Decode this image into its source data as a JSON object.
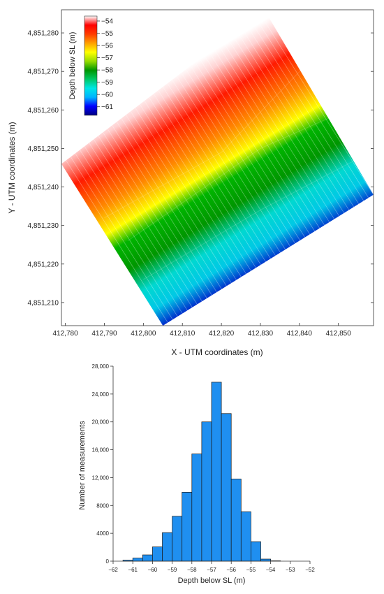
{
  "chart_data": [
    {
      "type": "scatter",
      "xlabel": "X - UTM coordinates (m)",
      "ylabel": "Y - UTM coordinates (m)",
      "x_ticks": [
        "412,780",
        "412,790",
        "412,800",
        "412,810",
        "412,820",
        "412,830",
        "412,840",
        "412,850"
      ],
      "y_ticks": [
        "4,851,210",
        "4,851,220",
        "4,851,230",
        "4,851,240",
        "4,851,250",
        "4,851,260",
        "4,851,270",
        "4,851,280"
      ],
      "x_tick_values": [
        412780,
        412790,
        412800,
        412810,
        412820,
        412830,
        412840,
        412850
      ],
      "y_tick_values": [
        4851210,
        4851220,
        4851230,
        4851240,
        4851250,
        4851260,
        4851270,
        4851280
      ],
      "xlim": [
        412779,
        412859
      ],
      "ylim": [
        4851204,
        4851286
      ],
      "survey_area_corners": [
        [
          412779,
          4851246
        ],
        [
          412831,
          4851286
        ],
        [
          412859,
          4851238
        ],
        [
          412805,
          4851204
        ]
      ],
      "colorbar": {
        "label": "Depth below SL (m)",
        "tick_labels": [
          "−54",
          "−55",
          "−56",
          "−57",
          "−58",
          "−59",
          "−60",
          "−61"
        ],
        "tick_values": [
          -54,
          -55,
          -56,
          -57,
          -58,
          -59,
          -60,
          -61
        ],
        "range": [
          -61.7,
          -53.6
        ],
        "colors": [
          "#000080",
          "#0000ff",
          "#00b4ff",
          "#00e6e6",
          "#00c864",
          "#009600",
          "#96dc00",
          "#ffff00",
          "#ffa000",
          "#ff3c00",
          "#ff0000",
          "#ffffff"
        ],
        "placement": "top-left"
      },
      "depth_contours": [
        {
          "depth": -54,
          "line": [
            [
              412779,
              4851264
            ],
            [
              412831,
              4851304
            ]
          ]
        },
        {
          "depth": -56,
          "line": [
            [
              412779,
              4851251
            ],
            [
              412830,
              4851284
            ]
          ]
        },
        {
          "depth": -57,
          "line": [
            [
              412790,
              4851232
            ],
            [
              412820,
              4851249
            ],
            [
              412842,
              4851272
            ]
          ]
        },
        {
          "depth": -58,
          "line": [
            [
              412796,
              4851226
            ],
            [
              412830,
              4851250
            ],
            [
              412850,
              4851259
            ]
          ]
        },
        {
          "depth": -59,
          "line": [
            [
              412800,
              4851216
            ],
            [
              412830,
              4851234
            ],
            [
              412860,
              4851250
            ]
          ]
        },
        {
          "depth": -61,
          "line": [
            [
              412812,
              4851204
            ],
            [
              412859,
              4851238
            ]
          ]
        }
      ]
    },
    {
      "type": "bar",
      "title": "",
      "xlabel": "Depth below SL (m)",
      "ylabel": "Number of measurements",
      "x_ticks": [
        "−62",
        "−61",
        "−60",
        "−59",
        "−58",
        "−57",
        "−56",
        "−55",
        "−54",
        "−53",
        "−52"
      ],
      "x_tick_values": [
        -62,
        -61,
        -60,
        -59,
        -58,
        -57,
        -56,
        -55,
        -54,
        -53,
        -52
      ],
      "y_ticks": [
        "0",
        "4000",
        "8000",
        "12,000",
        "16,000",
        "20,000",
        "24,000",
        "28,000"
      ],
      "y_tick_values": [
        0,
        4000,
        8000,
        12000,
        16000,
        20000,
        24000,
        28000
      ],
      "xlim": [
        -62,
        -52
      ],
      "ylim": [
        0,
        28000
      ],
      "bin_width": 0.5,
      "bins": [
        -61.5,
        -61.0,
        -60.5,
        -60.0,
        -59.5,
        -59.0,
        -58.5,
        -58.0,
        -57.5,
        -57.0,
        -56.5,
        -56.0,
        -55.5,
        -55.0,
        -54.5,
        -54.0
      ],
      "values": [
        150,
        450,
        900,
        2050,
        4100,
        6450,
        9900,
        15400,
        20000,
        25700,
        21200,
        11800,
        7100,
        2800,
        300,
        50
      ],
      "bar_color": "#1f8ff0"
    }
  ]
}
